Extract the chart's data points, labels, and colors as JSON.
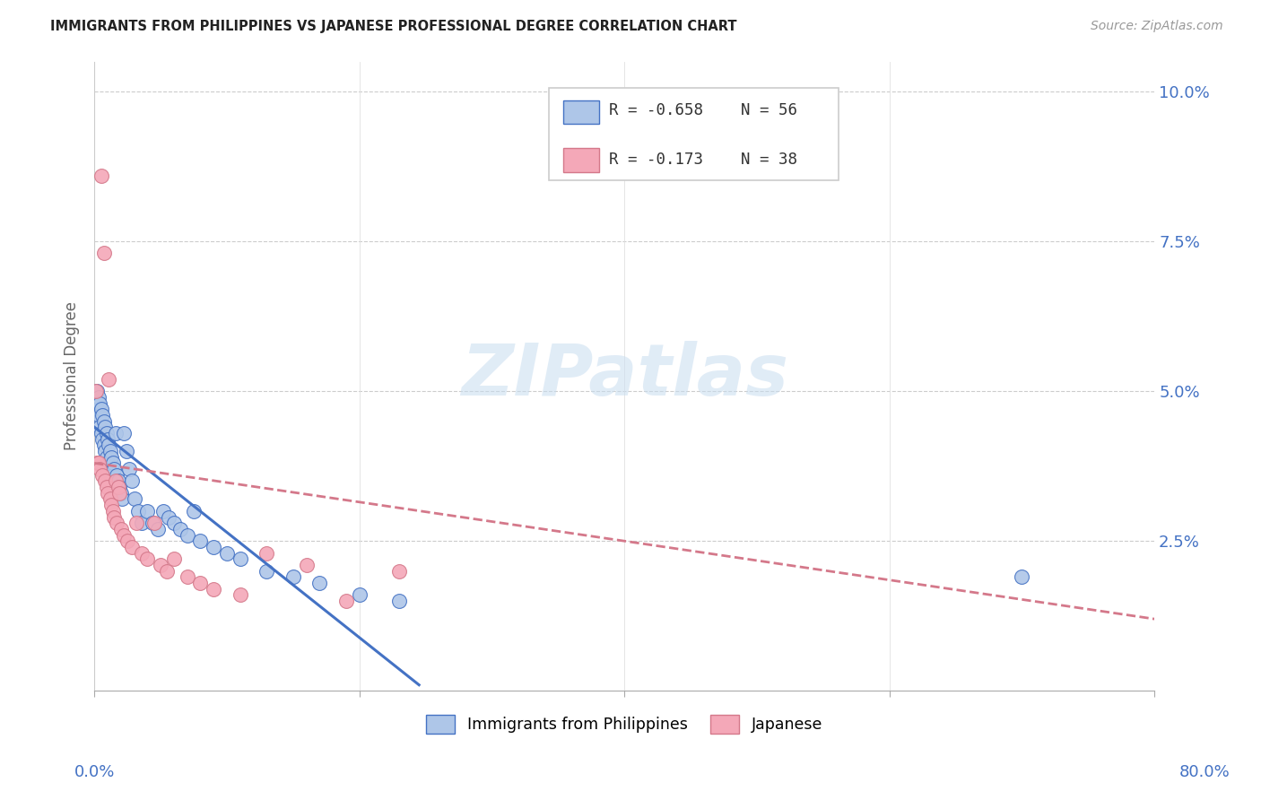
{
  "title": "IMMIGRANTS FROM PHILIPPINES VS JAPANESE PROFESSIONAL DEGREE CORRELATION CHART",
  "source": "Source: ZipAtlas.com",
  "ylabel": "Professional Degree",
  "xlim": [
    0.0,
    0.8
  ],
  "ylim": [
    0.0,
    0.105
  ],
  "watermark": "ZIPatlas",
  "legend_r1": "R = -0.658",
  "legend_n1": "N = 56",
  "legend_r2": "R = -0.173",
  "legend_n2": "N = 38",
  "color_philippines": "#aec6e8",
  "color_japanese": "#f4a8b8",
  "color_philippines_line": "#4472c4",
  "color_japanese_line": "#d4788a",
  "color_axis": "#4472c4",
  "color_title": "#222222",
  "color_grid": "#cccccc",
  "phil_x": [
    0.001,
    0.002,
    0.002,
    0.003,
    0.003,
    0.004,
    0.004,
    0.005,
    0.005,
    0.006,
    0.006,
    0.007,
    0.007,
    0.008,
    0.008,
    0.009,
    0.009,
    0.01,
    0.01,
    0.011,
    0.012,
    0.013,
    0.014,
    0.015,
    0.016,
    0.017,
    0.018,
    0.019,
    0.02,
    0.021,
    0.022,
    0.024,
    0.026,
    0.028,
    0.03,
    0.033,
    0.036,
    0.04,
    0.044,
    0.048,
    0.052,
    0.056,
    0.06,
    0.065,
    0.07,
    0.075,
    0.08,
    0.09,
    0.1,
    0.11,
    0.13,
    0.15,
    0.17,
    0.2,
    0.23,
    0.7
  ],
  "phil_y": [
    0.048,
    0.05,
    0.047,
    0.049,
    0.046,
    0.048,
    0.044,
    0.047,
    0.043,
    0.046,
    0.042,
    0.045,
    0.041,
    0.044,
    0.04,
    0.043,
    0.039,
    0.042,
    0.038,
    0.041,
    0.04,
    0.039,
    0.038,
    0.037,
    0.043,
    0.036,
    0.035,
    0.034,
    0.033,
    0.032,
    0.043,
    0.04,
    0.037,
    0.035,
    0.032,
    0.03,
    0.028,
    0.03,
    0.028,
    0.027,
    0.03,
    0.029,
    0.028,
    0.027,
    0.026,
    0.03,
    0.025,
    0.024,
    0.023,
    0.022,
    0.02,
    0.019,
    0.018,
    0.016,
    0.015,
    0.019
  ],
  "jap_x": [
    0.001,
    0.002,
    0.003,
    0.004,
    0.005,
    0.006,
    0.007,
    0.008,
    0.009,
    0.01,
    0.011,
    0.012,
    0.013,
    0.014,
    0.015,
    0.016,
    0.017,
    0.018,
    0.019,
    0.02,
    0.022,
    0.025,
    0.028,
    0.032,
    0.036,
    0.04,
    0.045,
    0.05,
    0.055,
    0.06,
    0.07,
    0.08,
    0.09,
    0.11,
    0.13,
    0.16,
    0.19,
    0.23
  ],
  "jap_y": [
    0.05,
    0.038,
    0.038,
    0.037,
    0.086,
    0.036,
    0.073,
    0.035,
    0.034,
    0.033,
    0.052,
    0.032,
    0.031,
    0.03,
    0.029,
    0.035,
    0.028,
    0.034,
    0.033,
    0.027,
    0.026,
    0.025,
    0.024,
    0.028,
    0.023,
    0.022,
    0.028,
    0.021,
    0.02,
    0.022,
    0.019,
    0.018,
    0.017,
    0.016,
    0.023,
    0.021,
    0.015,
    0.02
  ],
  "phil_line_x": [
    0.0,
    0.245
  ],
  "phil_line_y": [
    0.044,
    0.001
  ],
  "jap_line_x": [
    0.0,
    0.8
  ],
  "jap_line_y": [
    0.038,
    0.012
  ]
}
